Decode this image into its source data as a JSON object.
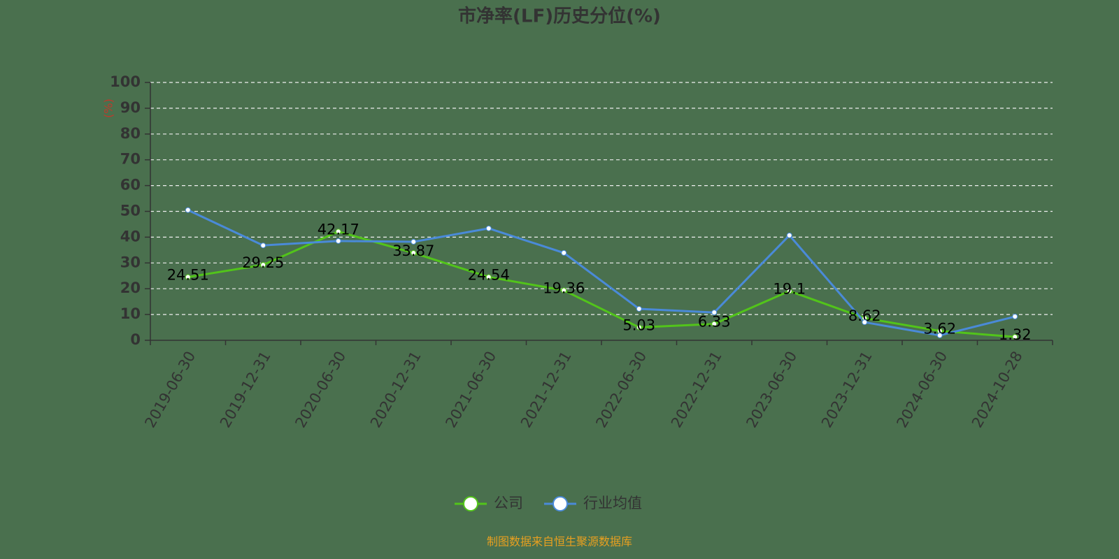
{
  "chart_data": {
    "type": "line",
    "title": "市净率(LF)历史分位(%)",
    "ylabel": "(%)",
    "categories": [
      "2019-06-30",
      "2019-12-31",
      "2020-06-30",
      "2020-12-31",
      "2021-06-30",
      "2021-12-31",
      "2022-06-30",
      "2022-12-31",
      "2023-06-30",
      "2023-12-31",
      "2024-06-30",
      "2024-10-28"
    ],
    "series": [
      {
        "name": "公司",
        "color": "#52c41a",
        "values": [
          24.51,
          29.25,
          42.17,
          33.87,
          24.54,
          19.36,
          5.03,
          6.33,
          19.1,
          8.62,
          3.62,
          1.32
        ],
        "show_labels": true
      },
      {
        "name": "行业均值",
        "color": "#4a8ad8",
        "values": [
          50.5,
          36.8,
          38.5,
          38.2,
          43.4,
          33.9,
          12.2,
          10.8,
          40.7,
          7.0,
          1.9,
          9.2
        ],
        "show_labels": false
      }
    ],
    "ylim": [
      0,
      100
    ],
    "yticks": [
      0,
      10,
      20,
      30,
      40,
      50,
      60,
      70,
      80,
      90,
      100
    ],
    "grid": true,
    "source": "制图数据来自恒生聚源数据库"
  }
}
